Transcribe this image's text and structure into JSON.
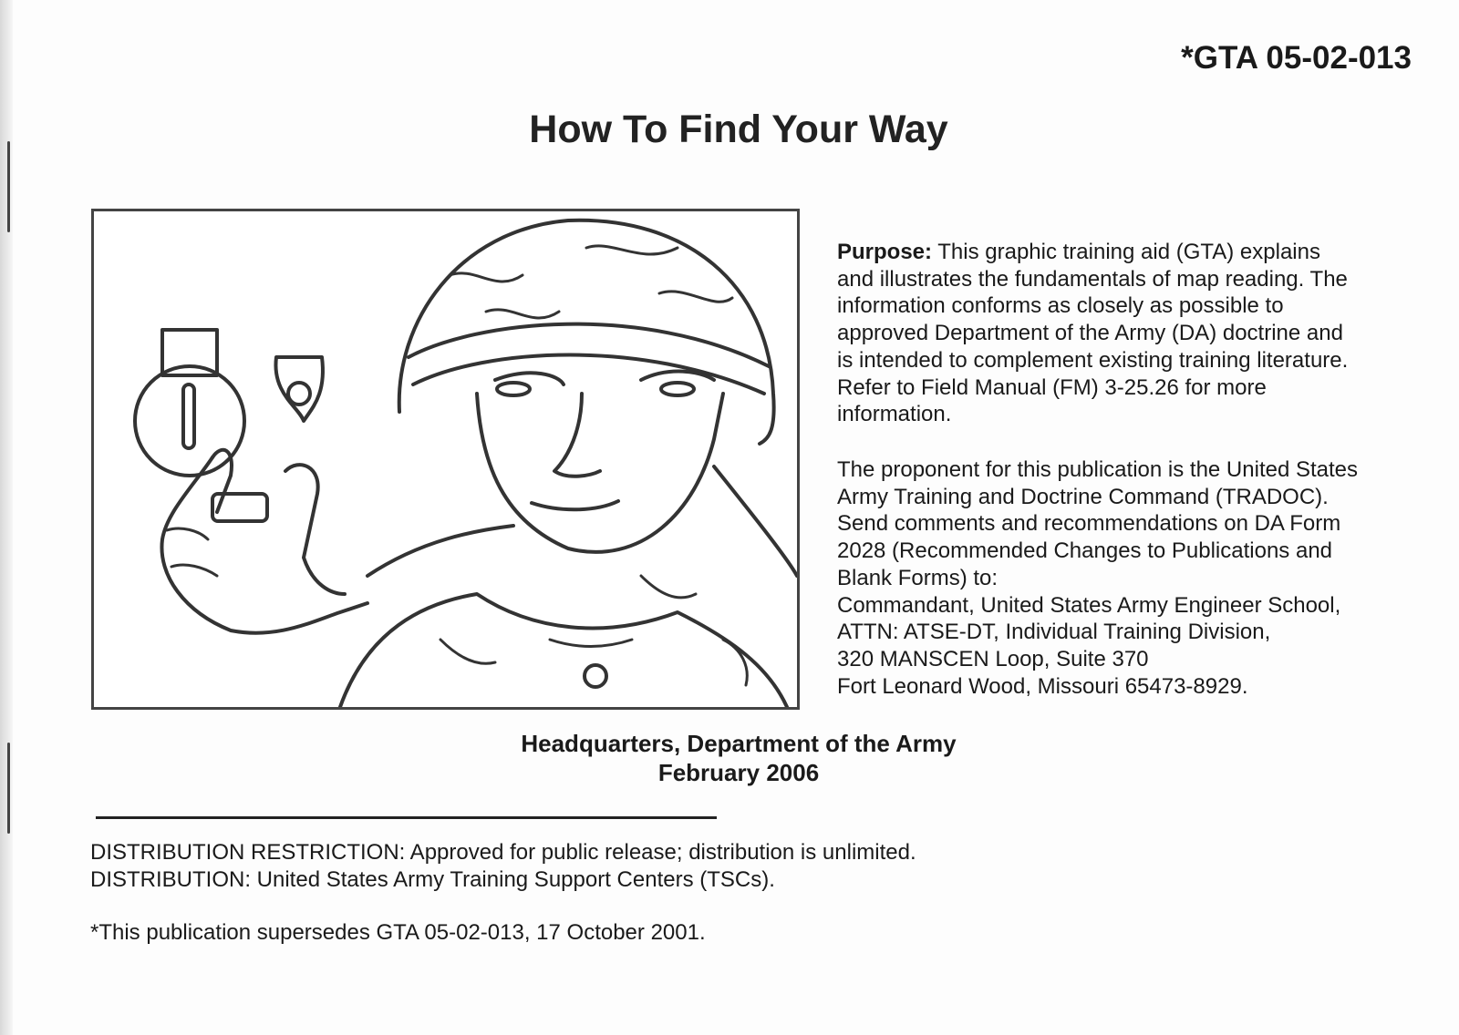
{
  "doc_number": "*GTA 05-02-013",
  "title": "How To Find Your Way",
  "purpose": {
    "label": "Purpose:",
    "lines": [
      " This graphic training aid (GTA) explains",
      "and illustrates the fundamentals of map reading. The",
      "information conforms as closely as possible to",
      "approved Department of the Army (DA) doctrine and",
      "is intended to complement existing training literature.",
      "Refer to Field Manual (FM) 3-25.26 for more",
      "information."
    ]
  },
  "proponent": {
    "lines": [
      "The proponent for this publication is the United States",
      "Army Training and Doctrine Command (TRADOC).",
      "Send comments and recommendations on DA Form",
      "2028 (Recommended Changes to Publications and",
      "Blank Forms) to:",
      "Commandant, United States Army Engineer School,",
      "ATTN: ATSE-DT, Individual Training Division,",
      "320 MANSCEN Loop, Suite 370",
      "Fort Leonard Wood, Missouri 65473-8929."
    ]
  },
  "issuer": {
    "name": "Headquarters, Department of the Army",
    "date": "February 2006"
  },
  "distribution": {
    "restriction": "DISTRIBUTION RESTRICTION: Approved for public release; distribution is unlimited.",
    "distribution": "DISTRIBUTION: United States Army Training Support Centers (TSCs)."
  },
  "supersedes": "*This publication supersedes GTA 05-02-013, 17 October 2001.",
  "illustration": "soldier-with-compass-line-drawing"
}
